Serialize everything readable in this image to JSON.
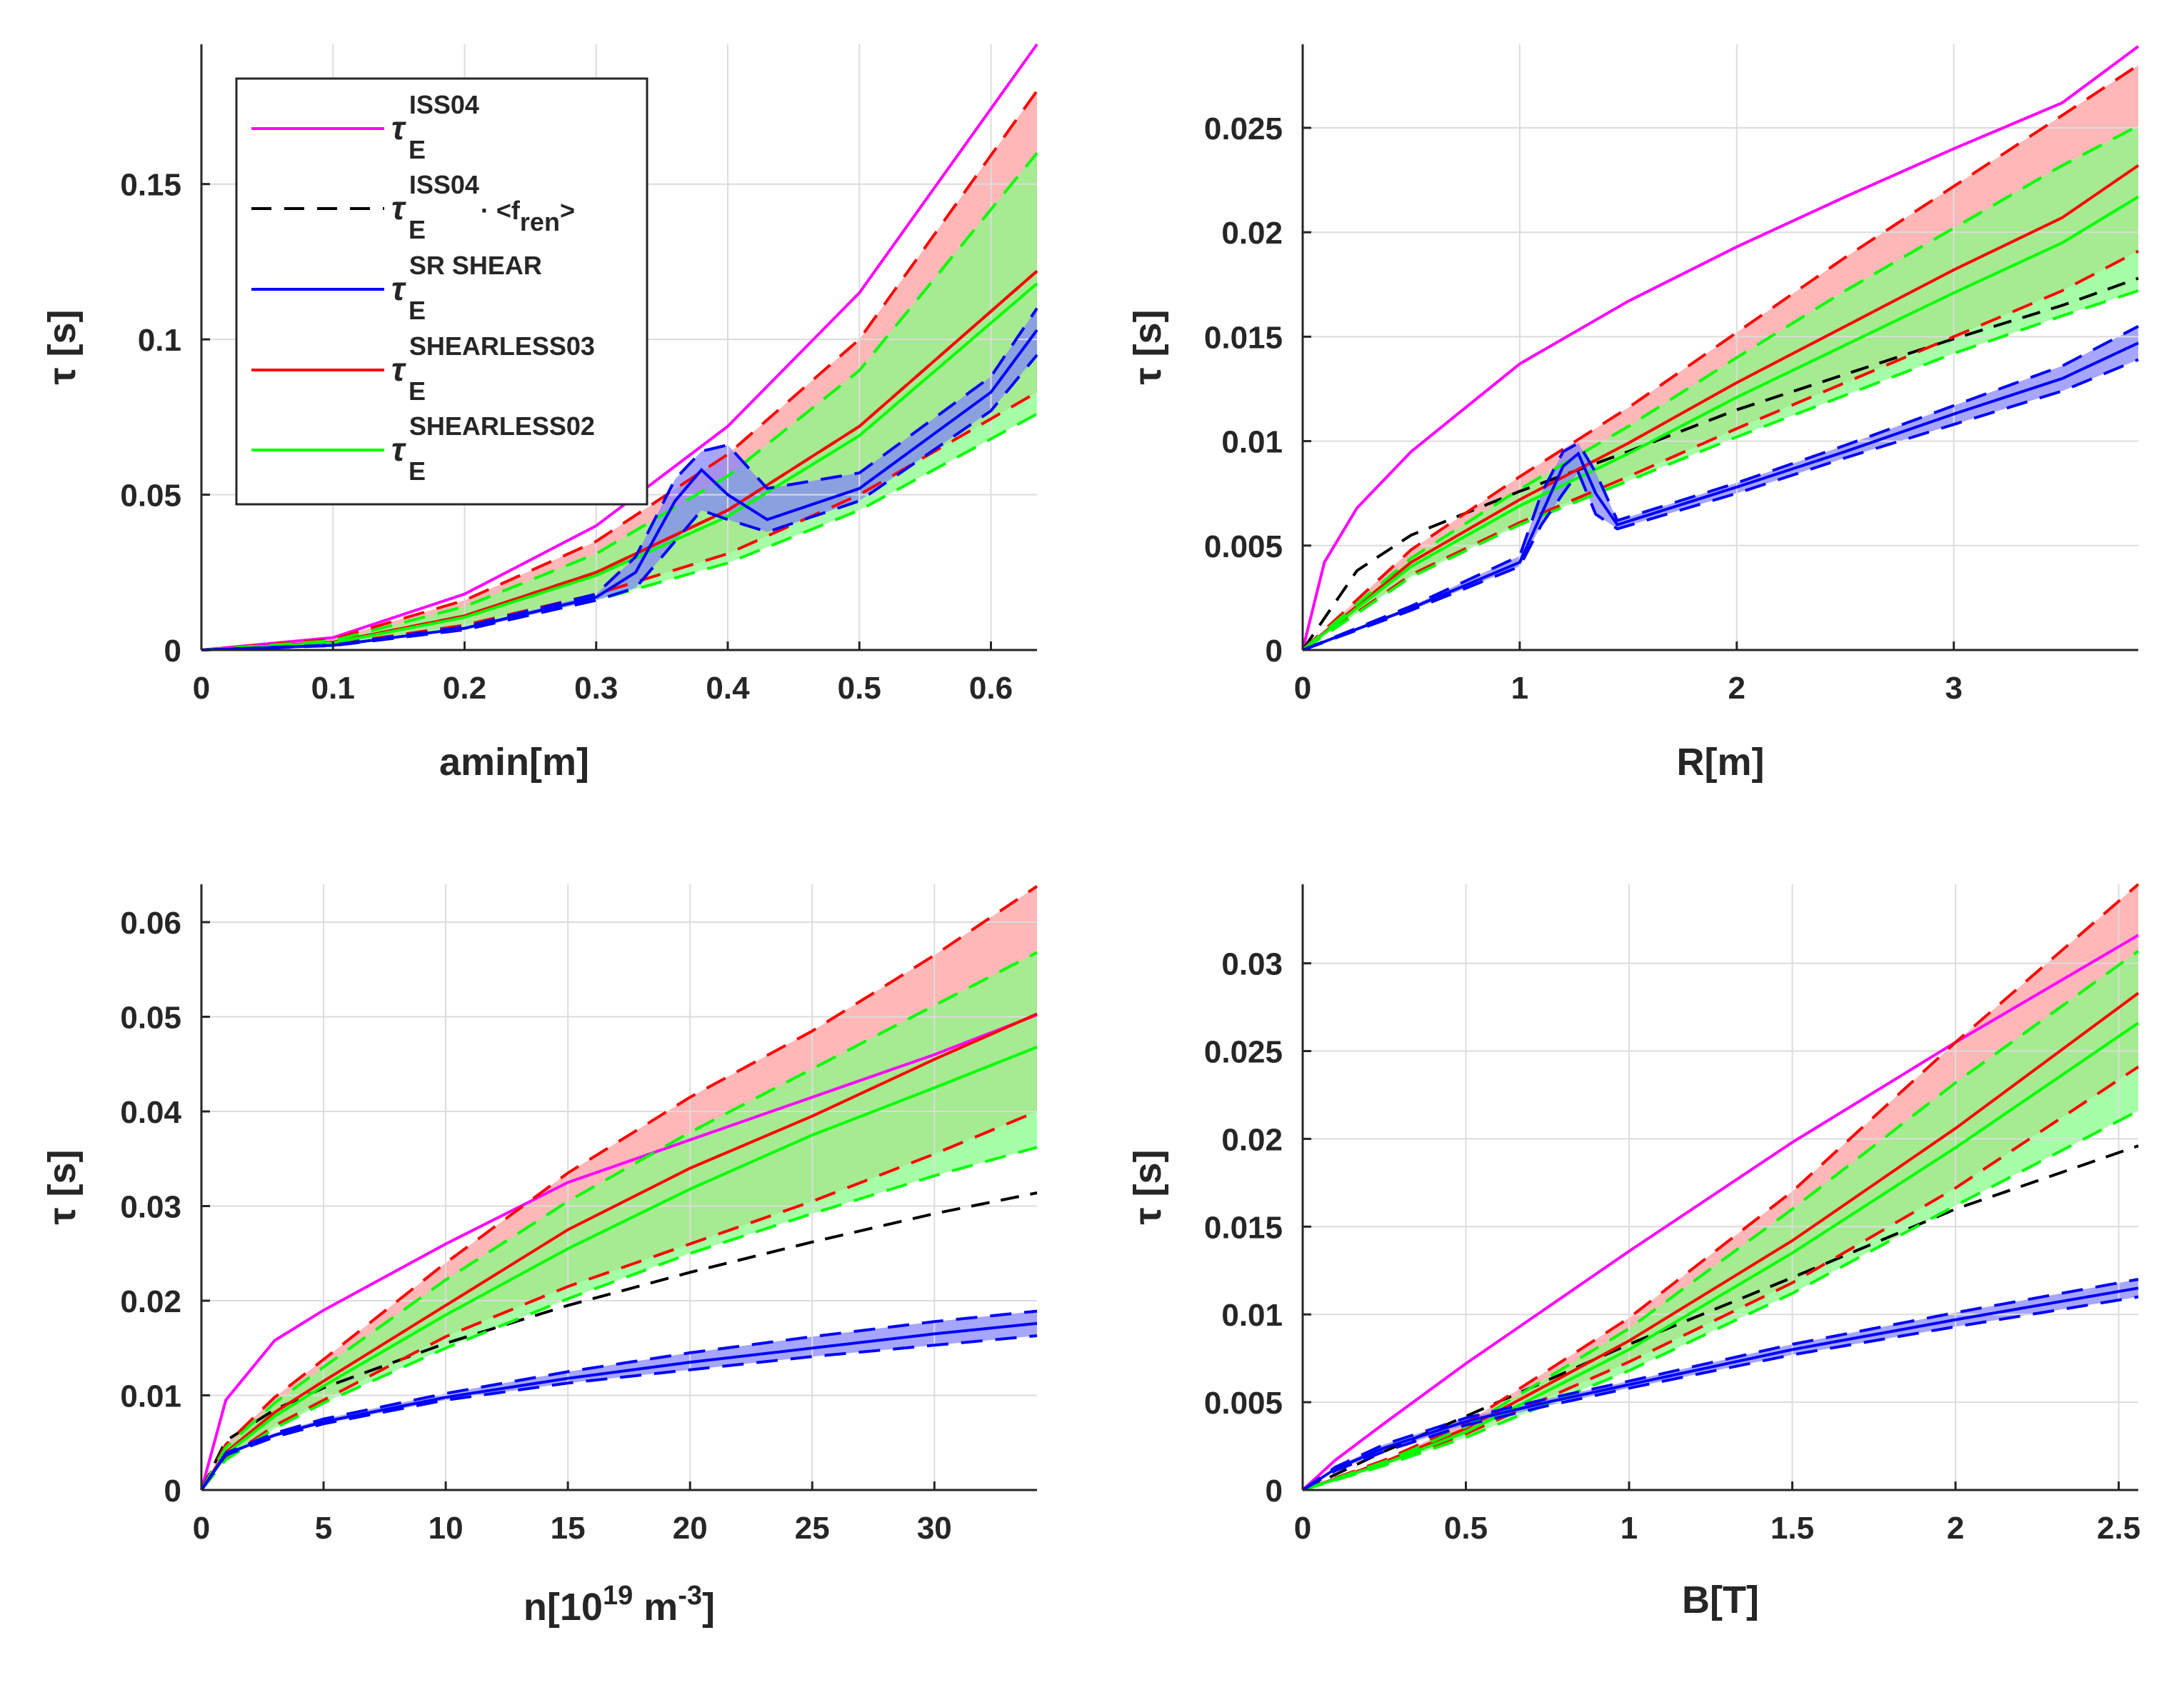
{
  "colors": {
    "iss04": "#ff00ff",
    "iss04_fren": "#000000",
    "sr_shear": "#0000ff",
    "shearless03": "#ff0000",
    "shearless02": "#00ff00",
    "shearless03_band": "#ff9090",
    "shearless02_band": "#80ff80",
    "sr_shear_band": "#8080ff",
    "grid": "#dcdcdc",
    "axis": "#262626"
  },
  "legend": {
    "entries": [
      {
        "key": "iss04",
        "symbol": "τ",
        "sub": "E",
        "sup": "ISS04",
        "suffix": "",
        "dashed": false
      },
      {
        "key": "iss04_fren",
        "symbol": "τ",
        "sub": "E",
        "sup": "ISS04",
        "suffix": "· <f",
        "suffix_sub": "ren",
        "suffix_end": ">",
        "dashed": true
      },
      {
        "key": "sr_shear",
        "symbol": "τ",
        "sub": "E",
        "sup": "SR SHEAR",
        "suffix": "",
        "dashed": false
      },
      {
        "key": "shearless03",
        "symbol": "τ",
        "sub": "E",
        "sup": "SHEARLESS03",
        "suffix": "",
        "dashed": false
      },
      {
        "key": "shearless02",
        "symbol": "τ",
        "sub": "E",
        "sup": "SHEARLESS02",
        "suffix": "",
        "dashed": false
      }
    ]
  },
  "chart_data": [
    {
      "type": "line",
      "id": "amin",
      "xlabel": "amin[m]",
      "ylabel": "τ [s]",
      "xlim": [
        0,
        0.635
      ],
      "ylim": [
        0,
        0.195
      ],
      "xticks": [
        0,
        0.1,
        0.2,
        0.3,
        0.4,
        0.5,
        0.6
      ],
      "xtick_labels": [
        "0",
        "0.1",
        "0.2",
        "0.3",
        "0.4",
        "0.5",
        "0.6"
      ],
      "yticks": [
        0,
        0.05,
        0.1,
        0.15
      ],
      "ytick_labels": [
        "0",
        "0.05",
        "0.1",
        "0.15"
      ],
      "series": [
        {
          "name": "τE ISS04",
          "key": "iss04",
          "x": [
            0,
            0.1,
            0.2,
            0.3,
            0.4,
            0.5,
            0.635
          ],
          "y": [
            0,
            0.004,
            0.018,
            0.04,
            0.072,
            0.115,
            0.195
          ]
        },
        {
          "name": "τE ISS04·<fren>",
          "key": "iss04_fren",
          "x": [
            0,
            0.1,
            0.2,
            0.3,
            0.4,
            0.5,
            0.635
          ],
          "y": [
            0,
            0.0025,
            0.011,
            0.025,
            0.045,
            0.072,
            0.122
          ]
        },
        {
          "name": "τE SHEARLESS03",
          "key": "shearless03",
          "x": [
            0,
            0.1,
            0.2,
            0.3,
            0.4,
            0.5,
            0.635
          ],
          "y": [
            0,
            0.0025,
            0.011,
            0.025,
            0.045,
            0.072,
            0.122
          ],
          "upper": [
            0,
            0.0035,
            0.016,
            0.035,
            0.063,
            0.1,
            0.18
          ],
          "lower": [
            0,
            0.0018,
            0.008,
            0.018,
            0.031,
            0.05,
            0.083
          ]
        },
        {
          "name": "τE SHEARLESS02",
          "key": "shearless02",
          "x": [
            0,
            0.1,
            0.2,
            0.3,
            0.4,
            0.5,
            0.635
          ],
          "y": [
            0,
            0.0023,
            0.0105,
            0.024,
            0.043,
            0.069,
            0.118
          ],
          "upper": [
            0,
            0.003,
            0.014,
            0.031,
            0.056,
            0.09,
            0.16
          ],
          "lower": [
            0,
            0.0017,
            0.007,
            0.016,
            0.028,
            0.045,
            0.076
          ]
        },
        {
          "name": "τE SR SHEAR",
          "key": "sr_shear",
          "x": [
            0,
            0.1,
            0.2,
            0.3,
            0.33,
            0.36,
            0.38,
            0.4,
            0.43,
            0.5,
            0.6,
            0.635
          ],
          "y": [
            0,
            0.0015,
            0.007,
            0.017,
            0.025,
            0.048,
            0.058,
            0.05,
            0.042,
            0.052,
            0.083,
            0.103
          ],
          "upper": [
            0,
            0.0016,
            0.0075,
            0.018,
            0.03,
            0.055,
            0.064,
            0.066,
            0.052,
            0.057,
            0.088,
            0.11
          ],
          "lower": [
            0,
            0.0014,
            0.0065,
            0.016,
            0.02,
            0.035,
            0.045,
            0.042,
            0.038,
            0.048,
            0.077,
            0.095
          ]
        }
      ]
    },
    {
      "type": "line",
      "id": "R",
      "xlabel": "R[m]",
      "ylabel": "τ [s]",
      "xlim": [
        0,
        3.85
      ],
      "ylim": [
        0,
        0.029
      ],
      "xticks": [
        0,
        1,
        2,
        3
      ],
      "xtick_labels": [
        "0",
        "1",
        "2",
        "3"
      ],
      "yticks": [
        0,
        0.005,
        0.01,
        0.015,
        0.02,
        0.025
      ],
      "ytick_labels": [
        "0",
        "0.005",
        "0.01",
        "0.015",
        "0.02",
        "0.025"
      ],
      "series": [
        {
          "name": "τE ISS04",
          "key": "iss04",
          "x": [
            0,
            0.1,
            0.25,
            0.5,
            1,
            1.5,
            2,
            2.5,
            3,
            3.5,
            3.85
          ],
          "y": [
            0,
            0.0042,
            0.0068,
            0.0095,
            0.0137,
            0.0167,
            0.0193,
            0.0217,
            0.024,
            0.0262,
            0.0289
          ]
        },
        {
          "name": "τE ISS04·<fren>",
          "key": "iss04_fren",
          "x": [
            0,
            0.25,
            0.5,
            1,
            1.5,
            2,
            2.5,
            3,
            3.5,
            3.85
          ],
          "y": [
            0,
            0.0038,
            0.0055,
            0.0076,
            0.0095,
            0.0115,
            0.0132,
            0.0149,
            0.0165,
            0.0178
          ]
        },
        {
          "name": "τE SHEARLESS03",
          "key": "shearless03",
          "x": [
            0,
            0.5,
            1,
            1.5,
            2,
            2.5,
            3,
            3.5,
            3.85
          ],
          "y": [
            0,
            0.0042,
            0.0072,
            0.0099,
            0.0128,
            0.0155,
            0.0182,
            0.0207,
            0.0232
          ],
          "upper": [
            0,
            0.0048,
            0.0083,
            0.0116,
            0.0152,
            0.0188,
            0.0222,
            0.0256,
            0.028
          ],
          "lower": [
            0,
            0.0036,
            0.0061,
            0.0083,
            0.0106,
            0.0128,
            0.015,
            0.0172,
            0.0191
          ]
        },
        {
          "name": "τE SHEARLESS02",
          "key": "shearless02",
          "x": [
            0,
            0.5,
            1,
            1.5,
            2,
            2.5,
            3,
            3.5,
            3.85
          ],
          "y": [
            0,
            0.004,
            0.0069,
            0.0094,
            0.0121,
            0.0146,
            0.0171,
            0.0195,
            0.0217
          ],
          "upper": [
            0,
            0.0044,
            0.0077,
            0.0107,
            0.014,
            0.0172,
            0.0202,
            0.0232,
            0.0251
          ],
          "lower": [
            0,
            0.0035,
            0.006,
            0.0081,
            0.0102,
            0.0122,
            0.0142,
            0.016,
            0.0172
          ]
        },
        {
          "name": "τE SR SHEAR",
          "key": "sr_shear",
          "x": [
            0,
            0.5,
            1,
            1.1,
            1.2,
            1.27,
            1.35,
            1.45,
            2,
            2.5,
            3,
            3.5,
            3.85
          ],
          "y": [
            0,
            0.002,
            0.0042,
            0.0065,
            0.0088,
            0.0094,
            0.0075,
            0.006,
            0.0078,
            0.0095,
            0.0113,
            0.013,
            0.0147
          ],
          "upper": [
            0,
            0.0021,
            0.0045,
            0.0075,
            0.0095,
            0.0099,
            0.0085,
            0.0062,
            0.008,
            0.0098,
            0.0117,
            0.0136,
            0.0155
          ],
          "lower": [
            0,
            0.0019,
            0.004,
            0.006,
            0.0075,
            0.0085,
            0.0065,
            0.0058,
            0.0075,
            0.0092,
            0.0108,
            0.0124,
            0.0139
          ]
        }
      ]
    },
    {
      "type": "line",
      "id": "n",
      "xlabel": "n[10",
      "xlabel_sup": "19",
      "xlabel_mid": " m",
      "xlabel_sup2": "-3",
      "xlabel_end": "]",
      "ylabel": "τ [s]",
      "xlim": [
        0,
        34.2
      ],
      "ylim": [
        0,
        0.064
      ],
      "xticks": [
        0,
        5,
        10,
        15,
        20,
        25,
        30
      ],
      "xtick_labels": [
        "0",
        "5",
        "10",
        "15",
        "20",
        "25",
        "30"
      ],
      "yticks": [
        0,
        0.01,
        0.02,
        0.03,
        0.04,
        0.05,
        0.06
      ],
      "ytick_labels": [
        "0",
        "0.01",
        "0.02",
        "0.03",
        "0.04",
        "0.05",
        "0.06"
      ],
      "series": [
        {
          "name": "τE ISS04",
          "key": "iss04",
          "x": [
            0,
            1,
            3,
            5,
            10,
            15,
            20,
            25,
            30,
            34.2
          ],
          "y": [
            0,
            0.0095,
            0.0158,
            0.019,
            0.026,
            0.0325,
            0.037,
            0.0415,
            0.046,
            0.0502
          ]
        },
        {
          "name": "τE ISS04·<fren>",
          "key": "iss04_fren",
          "x": [
            0,
            1,
            3,
            5,
            10,
            15,
            20,
            25,
            30,
            34.2
          ],
          "y": [
            0,
            0.0052,
            0.0085,
            0.0108,
            0.0155,
            0.0195,
            0.023,
            0.0262,
            0.0292,
            0.0314
          ]
        },
        {
          "name": "τE SHEARLESS03",
          "key": "shearless03",
          "x": [
            0,
            1,
            3,
            5,
            10,
            15,
            20,
            25,
            30,
            34.2
          ],
          "y": [
            0,
            0.004,
            0.0082,
            0.0115,
            0.0195,
            0.0275,
            0.034,
            0.0395,
            0.0455,
            0.0503
          ],
          "upper": [
            0,
            0.0048,
            0.0098,
            0.0138,
            0.024,
            0.0335,
            0.0415,
            0.0485,
            0.0565,
            0.0638
          ],
          "lower": [
            0,
            0.0033,
            0.0068,
            0.0095,
            0.0162,
            0.0215,
            0.026,
            0.0305,
            0.0355,
            0.04
          ]
        },
        {
          "name": "τE SHEARLESS02",
          "key": "shearless02",
          "x": [
            0,
            1,
            3,
            5,
            10,
            15,
            20,
            25,
            30,
            34.2
          ],
          "y": [
            0,
            0.0038,
            0.0078,
            0.011,
            0.0185,
            0.0255,
            0.0318,
            0.0375,
            0.0425,
            0.0468
          ],
          "upper": [
            0,
            0.0045,
            0.0092,
            0.013,
            0.0222,
            0.0305,
            0.0378,
            0.0445,
            0.0512,
            0.0568
          ],
          "lower": [
            0,
            0.0032,
            0.0065,
            0.0092,
            0.015,
            0.0202,
            0.025,
            0.0292,
            0.0332,
            0.0362
          ]
        },
        {
          "name": "τE SR SHEAR",
          "key": "sr_shear",
          "x": [
            0,
            1,
            3,
            5,
            10,
            15,
            20,
            25,
            30,
            34.2
          ],
          "y": [
            0,
            0.0038,
            0.0058,
            0.0072,
            0.0098,
            0.0118,
            0.0135,
            0.015,
            0.0165,
            0.0176
          ],
          "upper": [
            0,
            0.0039,
            0.006,
            0.0075,
            0.0102,
            0.0125,
            0.0145,
            0.0162,
            0.0178,
            0.0189
          ],
          "lower": [
            0,
            0.0037,
            0.0056,
            0.007,
            0.0095,
            0.0113,
            0.0127,
            0.0141,
            0.0153,
            0.0163
          ]
        }
      ]
    },
    {
      "type": "line",
      "id": "B",
      "xlabel": "B[T]",
      "ylabel": "τ [s]",
      "xlim": [
        0,
        2.56
      ],
      "ylim": [
        0,
        0.0345
      ],
      "xticks": [
        0,
        0.5,
        1,
        1.5,
        2,
        2.5
      ],
      "xtick_labels": [
        "0",
        "0.5",
        "1",
        "1.5",
        "2",
        "2.5"
      ],
      "yticks": [
        0,
        0.005,
        0.01,
        0.015,
        0.02,
        0.025,
        0.03
      ],
      "ytick_labels": [
        "0",
        "0.005",
        "0.01",
        "0.015",
        "0.02",
        "0.025",
        "0.03"
      ],
      "series": [
        {
          "name": "τE ISS04",
          "key": "iss04",
          "x": [
            0,
            0.1,
            0.25,
            0.5,
            1,
            1.5,
            2,
            2.56
          ],
          "y": [
            0,
            0.0017,
            0.0038,
            0.0072,
            0.0136,
            0.0198,
            0.0255,
            0.0316
          ]
        },
        {
          "name": "τE ISS04·<fren>",
          "key": "iss04_fren",
          "x": [
            0,
            0.25,
            0.5,
            1,
            1.5,
            2,
            2.56
          ],
          "y": [
            0,
            0.0022,
            0.0042,
            0.0083,
            0.0121,
            0.016,
            0.0196
          ]
        },
        {
          "name": "τE SHEARLESS03",
          "key": "shearless03",
          "x": [
            0,
            0.25,
            0.5,
            1,
            1.5,
            2,
            2.56
          ],
          "y": [
            0,
            0.0016,
            0.0035,
            0.0085,
            0.0142,
            0.0206,
            0.0283
          ],
          "upper": [
            0,
            0.0017,
            0.0038,
            0.0098,
            0.017,
            0.0255,
            0.0345
          ],
          "lower": [
            0,
            0.0015,
            0.0032,
            0.0073,
            0.0118,
            0.0172,
            0.0241
          ]
        },
        {
          "name": "τE SHEARLESS02",
          "key": "shearless02",
          "x": [
            0,
            0.25,
            0.5,
            1,
            1.5,
            2,
            2.56
          ],
          "y": [
            0,
            0.0015,
            0.0033,
            0.008,
            0.0135,
            0.0195,
            0.0266
          ],
          "upper": [
            0,
            0.0016,
            0.0036,
            0.0092,
            0.016,
            0.0232,
            0.0307
          ],
          "lower": [
            0,
            0.0014,
            0.003,
            0.0068,
            0.0112,
            0.0162,
            0.0216
          ]
        },
        {
          "name": "τE SR SHEAR",
          "key": "sr_shear",
          "x": [
            0,
            0.1,
            0.25,
            0.5,
            0.75,
            1,
            1.5,
            2,
            2.56
          ],
          "y": [
            0,
            0.0012,
            0.0024,
            0.0039,
            0.005,
            0.006,
            0.008,
            0.0097,
            0.0115
          ],
          "upper": [
            0,
            0.0013,
            0.0026,
            0.0041,
            0.0052,
            0.0062,
            0.0083,
            0.0101,
            0.012
          ],
          "lower": [
            0,
            0.0011,
            0.0022,
            0.0037,
            0.0048,
            0.0058,
            0.0077,
            0.0093,
            0.011
          ]
        }
      ]
    }
  ]
}
